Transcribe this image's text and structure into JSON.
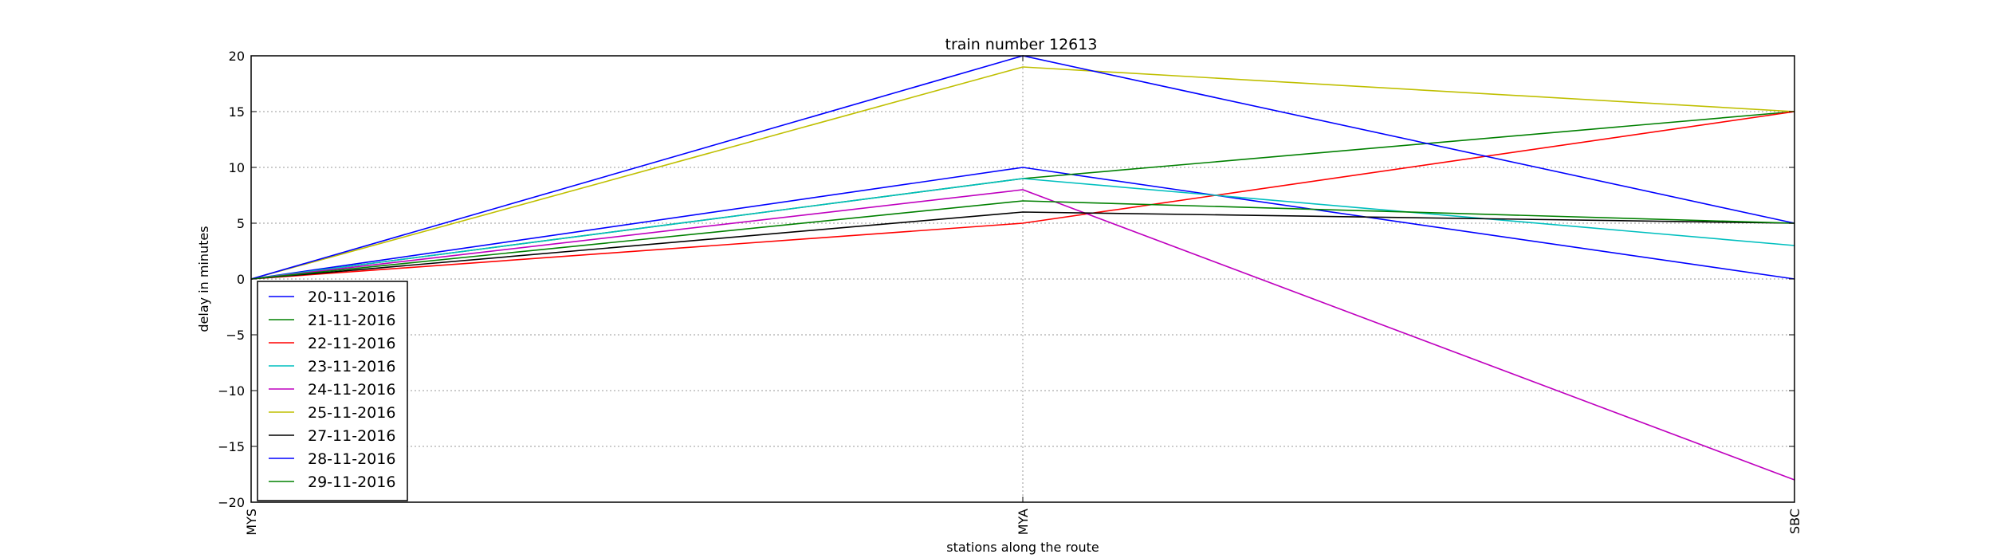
{
  "chart_data": {
    "type": "line",
    "title": "train number 12613",
    "xlabel": "stations along the route",
    "ylabel": "delay in minutes",
    "categories": [
      "MYS",
      "MYA",
      "SBC"
    ],
    "ylim": [
      -20,
      20
    ],
    "yticks": [
      -20,
      -15,
      -10,
      -5,
      0,
      5,
      10,
      15,
      20
    ],
    "grid": true,
    "legend_position": "lower-left",
    "series": [
      {
        "name": "20-11-2016",
        "color": "#0000ff",
        "values": [
          0,
          10,
          0
        ]
      },
      {
        "name": "21-11-2016",
        "color": "#008000",
        "values": [
          0,
          9,
          15
        ]
      },
      {
        "name": "22-11-2016",
        "color": "#ff0000",
        "values": [
          0,
          5,
          15
        ]
      },
      {
        "name": "23-11-2016",
        "color": "#00bfbf",
        "values": [
          0,
          9,
          3
        ]
      },
      {
        "name": "24-11-2016",
        "color": "#bf00bf",
        "values": [
          0,
          8,
          -18
        ]
      },
      {
        "name": "25-11-2016",
        "color": "#bfbf00",
        "values": [
          0,
          19,
          15
        ]
      },
      {
        "name": "27-11-2016",
        "color": "#000000",
        "values": [
          0,
          6,
          5
        ]
      },
      {
        "name": "28-11-2016",
        "color": "#0000ff",
        "values": [
          0,
          20,
          5
        ]
      },
      {
        "name": "29-11-2016",
        "color": "#008000",
        "values": [
          0,
          7,
          5
        ]
      }
    ]
  }
}
